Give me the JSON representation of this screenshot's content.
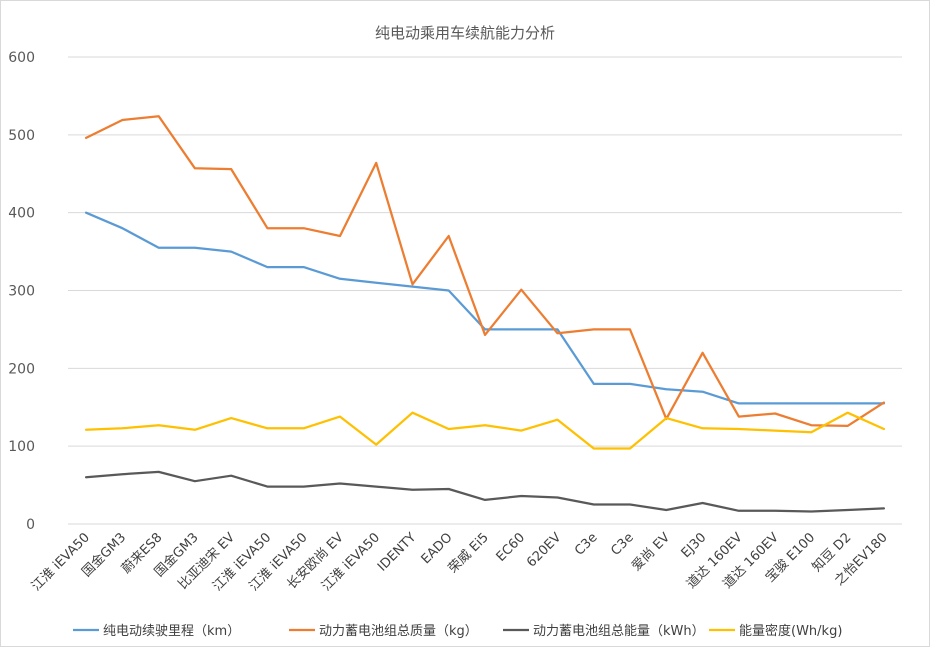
{
  "chart_data": {
    "type": "line",
    "title": "纯电动乘用车续航能力分析",
    "xlabel": "",
    "ylabel": "",
    "ylim": [
      0,
      600
    ],
    "yticks": [
      0,
      100,
      200,
      300,
      400,
      500,
      600
    ],
    "grid": true,
    "legend_position": "bottom",
    "categories": [
      "江淮 iEVA50",
      "国金GM3",
      "蔚来ES8",
      "国金GM3",
      "比亚迪宋 EV",
      "江淮 iEVA50",
      "江淮 iEVA50",
      "长安欧尚 EV",
      "江淮 iEVA50",
      "IDENTY",
      "EADO",
      "荣威 Ei5",
      "EC60",
      "620EV",
      "C3e",
      "C3e",
      "爱尚 EV",
      "EJ30",
      "道达 160EV",
      "道达 160EV",
      "宝骏 E100",
      "知豆 D2",
      "之怡EV180"
    ],
    "series": [
      {
        "name": "纯电动续驶里程（km）",
        "color": "#5b9bd5",
        "values": [
          400,
          380,
          355,
          355,
          350,
          330,
          330,
          315,
          310,
          305,
          300,
          250,
          250,
          250,
          180,
          180,
          173,
          170,
          155,
          155,
          155,
          155,
          155
        ]
      },
      {
        "name": "动力蓄电池组总质量（kg）",
        "color": "#ed7d31",
        "values": [
          496,
          519,
          524,
          457,
          456,
          380,
          380,
          370,
          464,
          308,
          370,
          243,
          301,
          245,
          250,
          250,
          135,
          220,
          138,
          142,
          127,
          126,
          156
        ]
      },
      {
        "name": "动力蓄电池组总能量（kWh）",
        "color": "#595959",
        "values": [
          60,
          64,
          67,
          55,
          62,
          48,
          48,
          52,
          48,
          44,
          45,
          31,
          36,
          34,
          25,
          25,
          18,
          27,
          17,
          17,
          16,
          18,
          20
        ]
      },
      {
        "name": "能量密度(Wh/kg)",
        "color": "#ffc000",
        "values": [
          121,
          123,
          127,
          121,
          136,
          123,
          123,
          138,
          102,
          143,
          122,
          127,
          120,
          134,
          97,
          97,
          136,
          123,
          122,
          120,
          118,
          143,
          122
        ]
      }
    ]
  }
}
